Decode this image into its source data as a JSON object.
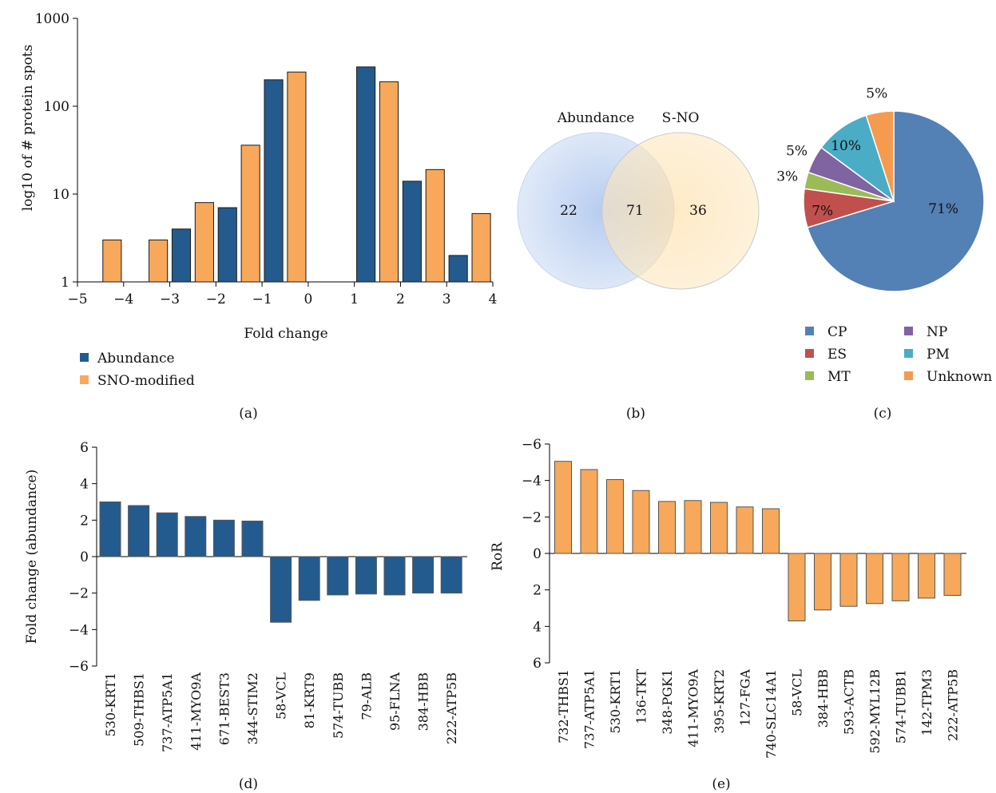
{
  "chart_data": [
    {
      "panel": "(a)",
      "type": "bar",
      "ylabel": "log10 of # protein spots",
      "xlabel": "Fold change",
      "yscale": "log",
      "ylim": [
        1,
        1000
      ],
      "xlim": [
        -5,
        4
      ],
      "yticks": [
        "1",
        "10",
        "100",
        "1000"
      ],
      "xticks": [
        "−5",
        "−4",
        "−3",
        "−2",
        "−1",
        "0",
        "1",
        "2",
        "3",
        "4"
      ],
      "colors": {
        "Abundance": "#245b8e",
        "SNO-modified": "#f8a85a"
      },
      "legend": [
        "Abundance",
        "SNO-modified"
      ],
      "legend_position": "bottom-left",
      "series": [
        {
          "name": "Abundance",
          "points": [
            {
              "x": -2.75,
              "y": 4
            },
            {
              "x": -1.75,
              "y": 7
            },
            {
              "x": -0.75,
              "y": 200
            },
            {
              "x": 1.25,
              "y": 280
            },
            {
              "x": 2.25,
              "y": 14
            },
            {
              "x": 3.25,
              "y": 2
            }
          ]
        },
        {
          "name": "SNO-modified",
          "points": [
            {
              "x": -4.25,
              "y": 3
            },
            {
              "x": -3.25,
              "y": 3
            },
            {
              "x": -2.25,
              "y": 8
            },
            {
              "x": -1.25,
              "y": 36
            },
            {
              "x": -0.25,
              "y": 245
            },
            {
              "x": 1.75,
              "y": 190
            },
            {
              "x": 2.75,
              "y": 19
            },
            {
              "x": 3.75,
              "y": 6
            }
          ]
        }
      ]
    },
    {
      "panel": "(b)",
      "type": "venn",
      "sets": [
        "Abundance",
        "S-NO"
      ],
      "counts": {
        "only_a": "22",
        "both": "71",
        "only_b": "36"
      },
      "colors": {
        "Abundance": "#b7cdf0",
        "S-NO": "#fde3ad"
      }
    },
    {
      "panel": "(c)",
      "type": "pie",
      "slices": [
        {
          "label": "CP",
          "value": 71,
          "text": "71%",
          "color": "#5380b5"
        },
        {
          "label": "ES",
          "value": 7,
          "text": "7%",
          "color": "#c1504d"
        },
        {
          "label": "MT",
          "value": 3,
          "text": "3%",
          "color": "#9bbb59"
        },
        {
          "label": "NP",
          "value": 5,
          "text": "5%",
          "color": "#8063a1"
        },
        {
          "label": "PM",
          "value": 10,
          "text": "10%",
          "color": "#4bacc6"
        },
        {
          "label": "Unknown",
          "value": 5,
          "text": "5%",
          "color": "#f49b4f"
        }
      ],
      "legend_position": "bottom"
    },
    {
      "panel": "(d)",
      "type": "bar",
      "ylabel": "Fold change (abundance)",
      "ylim": [
        -6,
        6
      ],
      "yticks": [
        "6",
        "4",
        "2",
        "0",
        "−2",
        "−4",
        "−6"
      ],
      "color": "#245b8e",
      "categories": [
        "530-KRT1",
        "509-THBS1",
        "737-ATP5A1",
        "411-MYO9A",
        "671-BEST3",
        "344-STIM2",
        "58-VCL",
        "81-KRT9",
        "574-TUBB",
        "79-ALB",
        "95-FLNA",
        "384-HBB",
        "222-ATP5B"
      ],
      "values": [
        3.0,
        2.8,
        2.4,
        2.2,
        2.0,
        1.95,
        -3.6,
        -2.4,
        -2.1,
        -2.05,
        -2.1,
        -2.0,
        -2.0
      ]
    },
    {
      "panel": "(e)",
      "type": "bar",
      "ylabel": "RoR",
      "ylim": [
        -6,
        6
      ],
      "yaxis_inverted": true,
      "yticks": [
        "−6",
        "−4",
        "−2",
        "0",
        "2",
        "4",
        "6"
      ],
      "color": "#f8a85a",
      "categories": [
        "732-THBS1",
        "737-ATP5A1",
        "530-KRT1",
        "136-TKT",
        "348-PGK1",
        "411-MYO9A",
        "395-KRT2",
        "127-FGA",
        "740-SLC14A1",
        "58-VCL",
        "384-HBB",
        "593-ACTB",
        "592-MYL12B",
        "574-TUBB1",
        "142-TPM3",
        "222-ATP5B"
      ],
      "values": [
        -5.05,
        -4.6,
        -4.05,
        -3.45,
        -2.85,
        -2.9,
        -2.8,
        -2.55,
        -2.45,
        3.7,
        3.1,
        2.9,
        2.75,
        2.6,
        2.45,
        2.3
      ]
    }
  ],
  "panel_labels": [
    "(a)",
    "(b)",
    "(c)",
    "(d)",
    "(e)"
  ]
}
